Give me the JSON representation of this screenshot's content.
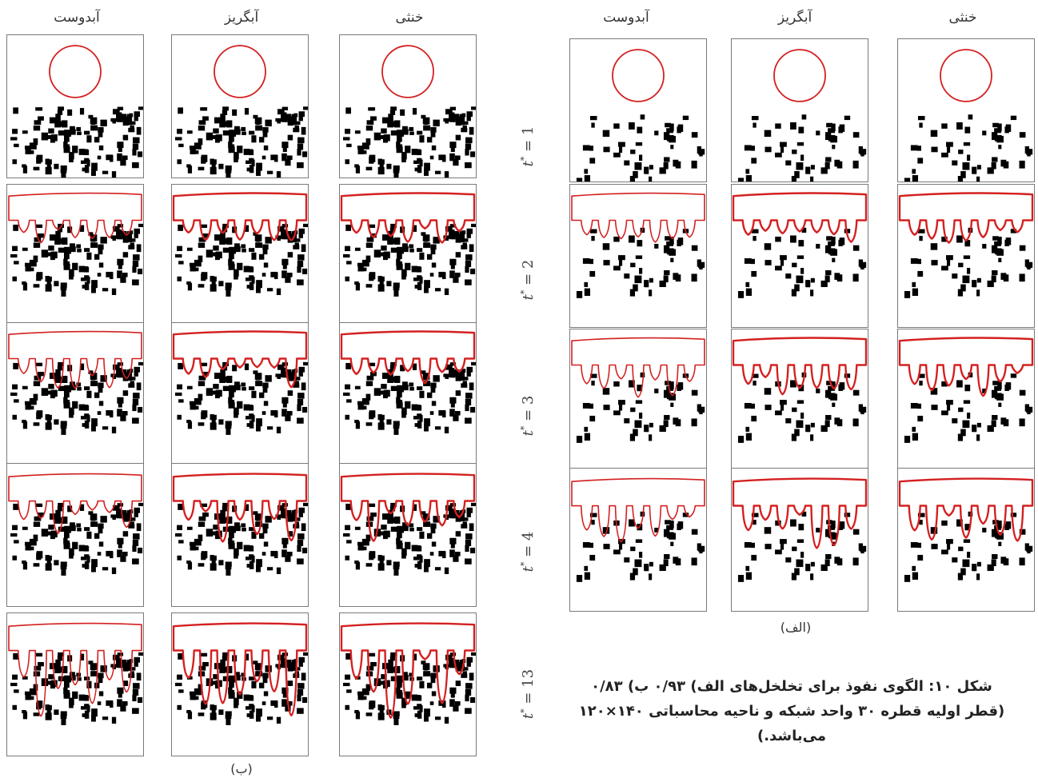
{
  "headers_b": [
    "آبدوست",
    "آبگریز",
    "خنثی"
  ],
  "headers_a": [
    "آبدوست",
    "آبگریز",
    "خنثی"
  ],
  "times": [
    "1",
    "2",
    "3",
    "4",
    "13"
  ],
  "time_symbol": "t",
  "time_sup": "*",
  "sublabel_a": "(الف)",
  "sublabel_b": "(ب)",
  "caption": {
    "line1": "شکل ۱۰: الگوی نفوذ برای تخلخل‌های الف) ۰/۹۳ ب) ۰/۸۳",
    "line2": "(قطر اولیه قطره ۳۰ واحد شبکه و ناحیه محاسباتی ۱۴۰×۱۲۰",
    "line3": "می‌باشد.)"
  },
  "colors": {
    "interface": "#d42020",
    "obstacle": "#000000",
    "frame": "#7a7a7a"
  }
}
